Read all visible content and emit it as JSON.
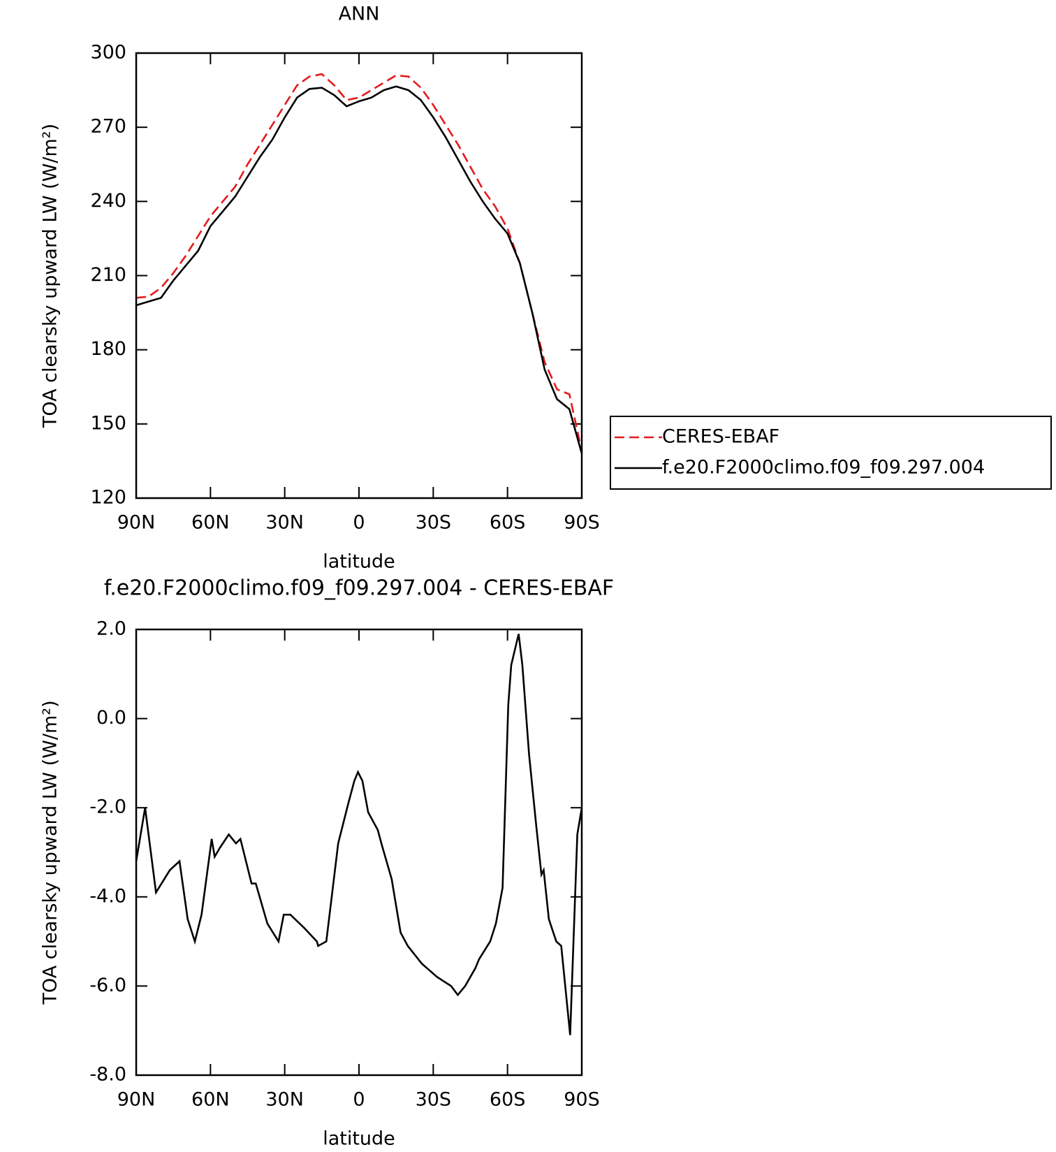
{
  "chart_data": [
    {
      "type": "line",
      "title": "ANN",
      "xlabel": "latitude",
      "ylabel": "TOA clearsky upward LW (W/m²)",
      "xlim": [
        90,
        -90
      ],
      "xticks": [
        {
          "value": 90,
          "label": "90N"
        },
        {
          "value": 60,
          "label": "60N"
        },
        {
          "value": 30,
          "label": "30N"
        },
        0,
        {
          "value": -30,
          "label": "30S"
        },
        {
          "value": -60,
          "label": "60S"
        },
        {
          "value": -90,
          "label": "90S"
        }
      ],
      "ylim": [
        120,
        300
      ],
      "yticks": [
        120,
        150,
        180,
        210,
        240,
        270,
        300
      ],
      "legend": "right",
      "x": [
        90,
        85,
        80,
        75,
        70,
        65,
        60,
        55,
        50,
        45,
        40,
        35,
        30,
        25,
        20,
        15,
        10,
        5,
        0,
        -5,
        -10,
        -15,
        -20,
        -25,
        -30,
        -35,
        -40,
        -45,
        -50,
        -55,
        -60,
        -65,
        -70,
        -75,
        -80,
        -85,
        -90
      ],
      "series": [
        {
          "name": "CERES-EBAF",
          "color": "#e41a1c",
          "dash": true,
          "values": [
            201,
            201.5,
            205,
            211,
            218,
            226,
            234,
            240,
            246,
            255,
            263,
            271,
            279,
            287,
            290.5,
            291.5,
            287,
            281,
            282,
            285,
            288,
            291,
            290.5,
            286,
            279,
            271,
            263,
            254,
            245,
            238,
            229,
            215,
            195,
            175,
            164,
            162,
            139
          ]
        },
        {
          "name": "f.e20.F2000climo.f09_f09.297.004",
          "color": "#000000",
          "dash": false,
          "values": [
            198,
            199.5,
            201,
            208,
            214,
            220,
            230,
            236,
            242,
            250,
            258,
            265,
            274,
            282,
            285.5,
            286,
            283,
            278.5,
            280.5,
            282,
            285,
            286.5,
            285,
            281,
            274,
            266,
            257,
            248,
            240,
            233,
            227,
            215,
            195,
            172,
            160,
            156,
            138
          ]
        }
      ]
    },
    {
      "type": "line",
      "title": "f.e20.F2000climo.f09_f09.297.004 - CERES-EBAF",
      "xlabel": "latitude",
      "ylabel": "TOA clearsky upward LW (W/m²)",
      "xlim": [
        90,
        -90
      ],
      "xticks": [
        {
          "value": 90,
          "label": "90N"
        },
        {
          "value": 60,
          "label": "60N"
        },
        {
          "value": 30,
          "label": "30N"
        },
        0,
        {
          "value": -30,
          "label": "30S"
        },
        {
          "value": -60,
          "label": "60S"
        },
        {
          "value": -90,
          "label": "90S"
        }
      ],
      "ylim": [
        -8,
        2
      ],
      "yticks": [
        {
          "value": -8,
          "label": "-8.0"
        },
        {
          "value": -6,
          "label": "-6.0"
        },
        {
          "value": -4,
          "label": "-4.0"
        },
        {
          "value": -2,
          "label": "-2.0"
        },
        {
          "value": 0,
          "label": "0.0"
        },
        {
          "value": 2,
          "label": "2.0"
        }
      ],
      "x": [
        90,
        86.4,
        82,
        76.4,
        72.5,
        69.2,
        66.3,
        63.6,
        59.5,
        58.3,
        56.2,
        52.6,
        49.7,
        47.9,
        43.4,
        41.7,
        37,
        32.5,
        30.4,
        27.7,
        22.1,
        17,
        16.5,
        13.2,
        8.4,
        4.3,
        1.9,
        0.4,
        -1.4,
        -3.7,
        -7.6,
        -9.3,
        -13.2,
        -16.8,
        -19.7,
        -25.4,
        -31.6,
        -37.2,
        -39.9,
        -42.9,
        -47,
        -48.5,
        -53,
        -55.3,
        -58,
        -60.3,
        -61.5,
        -64.5,
        -66,
        -68.7,
        -71.6,
        -73.7,
        -74.6,
        -76.7,
        -79.7,
        -81.7,
        -85.3,
        -88.2,
        -90
      ],
      "series": [
        {
          "color": "#000000",
          "values": [
            -3.2,
            -2.0,
            -3.9,
            -3.4,
            -3.2,
            -4.5,
            -5.0,
            -4.4,
            -2.7,
            -3.1,
            -2.9,
            -2.6,
            -2.8,
            -2.7,
            -3.7,
            -3.7,
            -4.6,
            -5.0,
            -4.4,
            -4.4,
            -4.7,
            -5.0,
            -5.1,
            -5.0,
            -2.8,
            -1.9,
            -1.4,
            -1.2,
            -1.4,
            -2.1,
            -2.5,
            -2.85,
            -3.6,
            -4.8,
            -5.1,
            -5.5,
            -5.8,
            -6.0,
            -6.2,
            -6.0,
            -5.6,
            -5.4,
            -5.0,
            -4.6,
            -3.8,
            0.3,
            1.2,
            1.9,
            1.2,
            -0.8,
            -2.4,
            -3.5,
            -3.4,
            -4.5,
            -5.0,
            -5.1,
            -7.1,
            -2.6,
            -2.0
          ]
        }
      ]
    }
  ]
}
